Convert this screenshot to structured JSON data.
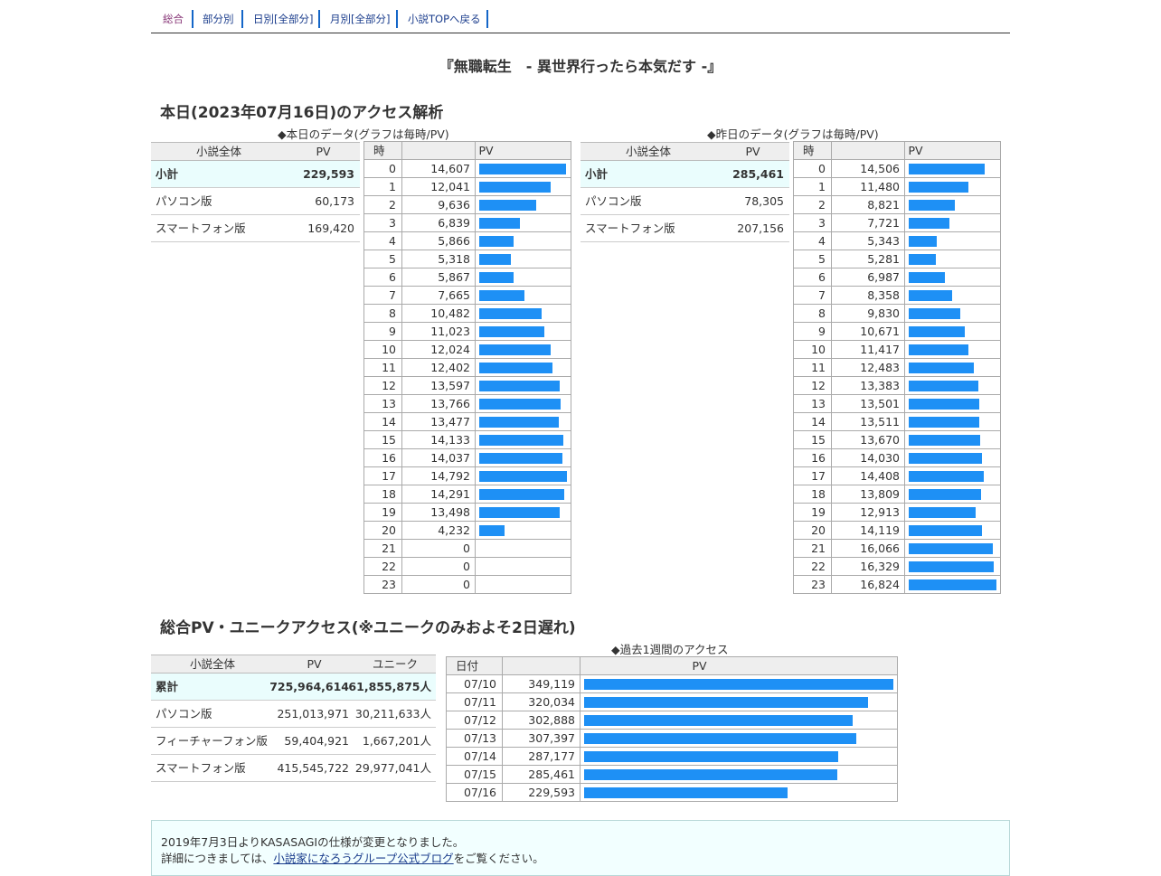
{
  "nav": {
    "items": [
      {
        "label": "総合",
        "current": true
      },
      {
        "label": "部分別",
        "current": false
      },
      {
        "label": "日別[全部分]",
        "current": false
      },
      {
        "label": "月別[全部分]",
        "current": false
      },
      {
        "label": "小説TOPへ戻る",
        "current": false
      }
    ]
  },
  "novel_title": "『無職転生　- 異世界行ったら本気だす -』",
  "today_section": {
    "title": "本日(2023年07月16日)のアクセス解析",
    "today_caption": "◆本日のデータ(グラフは毎時/PV)",
    "yesterday_caption": "◆昨日のデータ(グラフは毎時/PV)"
  },
  "today_summary": {
    "headers": [
      "小説全体",
      "PV"
    ],
    "rows": [
      {
        "label": "小計",
        "pv": "229,593"
      },
      {
        "label": "パソコン版",
        "pv": "60,173"
      },
      {
        "label": "スマートフォン版",
        "pv": "169,420"
      }
    ]
  },
  "yesterday_summary": {
    "headers": [
      "小説全体",
      "PV"
    ],
    "rows": [
      {
        "label": "小計",
        "pv": "285,461"
      },
      {
        "label": "パソコン版",
        "pv": "78,305"
      },
      {
        "label": "スマートフォン版",
        "pv": "207,156"
      }
    ]
  },
  "hourly_headers": [
    "時",
    "PV"
  ],
  "today_hourly": [
    {
      "hour": "0",
      "pv": "14,607",
      "value": 14607
    },
    {
      "hour": "1",
      "pv": "12,041",
      "value": 12041
    },
    {
      "hour": "2",
      "pv": "9,636",
      "value": 9636
    },
    {
      "hour": "3",
      "pv": "6,839",
      "value": 6839
    },
    {
      "hour": "4",
      "pv": "5,866",
      "value": 5866
    },
    {
      "hour": "5",
      "pv": "5,318",
      "value": 5318
    },
    {
      "hour": "6",
      "pv": "5,867",
      "value": 5867
    },
    {
      "hour": "7",
      "pv": "7,665",
      "value": 7665
    },
    {
      "hour": "8",
      "pv": "10,482",
      "value": 10482
    },
    {
      "hour": "9",
      "pv": "11,023",
      "value": 11023
    },
    {
      "hour": "10",
      "pv": "12,024",
      "value": 12024
    },
    {
      "hour": "11",
      "pv": "12,402",
      "value": 12402
    },
    {
      "hour": "12",
      "pv": "13,597",
      "value": 13597
    },
    {
      "hour": "13",
      "pv": "13,766",
      "value": 13766
    },
    {
      "hour": "14",
      "pv": "13,477",
      "value": 13477
    },
    {
      "hour": "15",
      "pv": "14,133",
      "value": 14133
    },
    {
      "hour": "16",
      "pv": "14,037",
      "value": 14037
    },
    {
      "hour": "17",
      "pv": "14,792",
      "value": 14792
    },
    {
      "hour": "18",
      "pv": "14,291",
      "value": 14291
    },
    {
      "hour": "19",
      "pv": "13,498",
      "value": 13498
    },
    {
      "hour": "20",
      "pv": "4,232",
      "value": 4232
    },
    {
      "hour": "21",
      "pv": "0",
      "value": 0
    },
    {
      "hour": "22",
      "pv": "0",
      "value": 0
    },
    {
      "hour": "23",
      "pv": "0",
      "value": 0
    }
  ],
  "yesterday_hourly": [
    {
      "hour": "0",
      "pv": "14,506",
      "value": 14506
    },
    {
      "hour": "1",
      "pv": "11,480",
      "value": 11480
    },
    {
      "hour": "2",
      "pv": "8,821",
      "value": 8821
    },
    {
      "hour": "3",
      "pv": "7,721",
      "value": 7721
    },
    {
      "hour": "4",
      "pv": "5,343",
      "value": 5343
    },
    {
      "hour": "5",
      "pv": "5,281",
      "value": 5281
    },
    {
      "hour": "6",
      "pv": "6,987",
      "value": 6987
    },
    {
      "hour": "7",
      "pv": "8,358",
      "value": 8358
    },
    {
      "hour": "8",
      "pv": "9,830",
      "value": 9830
    },
    {
      "hour": "9",
      "pv": "10,671",
      "value": 10671
    },
    {
      "hour": "10",
      "pv": "11,417",
      "value": 11417
    },
    {
      "hour": "11",
      "pv": "12,483",
      "value": 12483
    },
    {
      "hour": "12",
      "pv": "13,383",
      "value": 13383
    },
    {
      "hour": "13",
      "pv": "13,501",
      "value": 13501
    },
    {
      "hour": "14",
      "pv": "13,511",
      "value": 13511
    },
    {
      "hour": "15",
      "pv": "13,670",
      "value": 13670
    },
    {
      "hour": "16",
      "pv": "14,030",
      "value": 14030
    },
    {
      "hour": "17",
      "pv": "14,408",
      "value": 14408
    },
    {
      "hour": "18",
      "pv": "13,809",
      "value": 13809
    },
    {
      "hour": "19",
      "pv": "12,913",
      "value": 12913
    },
    {
      "hour": "20",
      "pv": "14,119",
      "value": 14119
    },
    {
      "hour": "21",
      "pv": "16,066",
      "value": 16066
    },
    {
      "hour": "22",
      "pv": "16,329",
      "value": 16329
    },
    {
      "hour": "23",
      "pv": "16,824",
      "value": 16824
    }
  ],
  "total_section": {
    "title": "総合PV・ユニークアクセス(※ユニークのみおよそ2日遅れ)",
    "week_caption": "◆過去1週間のアクセス"
  },
  "total_summary": {
    "headers": [
      "小説全体",
      "PV",
      "ユニーク"
    ],
    "rows": [
      {
        "label": "累計",
        "pv": "725,964,614",
        "unique": "61,855,875人"
      },
      {
        "label": "パソコン版",
        "pv": "251,013,971",
        "unique": "30,211,633人"
      },
      {
        "label": "フィーチャーフォン版",
        "pv": "59,404,921",
        "unique": "1,667,201人"
      },
      {
        "label": "スマートフォン版",
        "pv": "415,545,722",
        "unique": "29,977,041人"
      }
    ]
  },
  "week_headers": [
    "日付",
    "PV"
  ],
  "week": [
    {
      "date": "07/10",
      "pv": "349,119",
      "value": 349119
    },
    {
      "date": "07/11",
      "pv": "320,034",
      "value": 320034
    },
    {
      "date": "07/12",
      "pv": "302,888",
      "value": 302888
    },
    {
      "date": "07/13",
      "pv": "307,397",
      "value": 307397
    },
    {
      "date": "07/14",
      "pv": "287,177",
      "value": 287177
    },
    {
      "date": "07/15",
      "pv": "285,461",
      "value": 285461
    },
    {
      "date": "07/16",
      "pv": "229,593",
      "value": 229593
    }
  ],
  "notice": {
    "line1": "2019年7月3日よりKASASAGIの仕様が変更となりました。",
    "line2_pre": "詳細につきましては、",
    "line2_link": "小説家になろうグループ公式ブログ",
    "line2_post": "をご覧ください。"
  },
  "colors": {
    "bar": "#1e90f5",
    "highlight_row": "#eafdfd",
    "header_bg": "#eeeeee"
  }
}
